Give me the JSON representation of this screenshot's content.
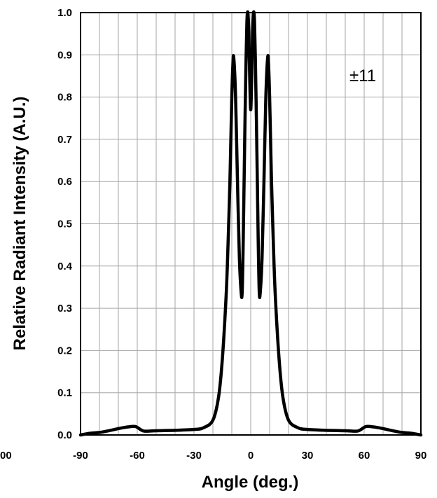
{
  "chart_data": {
    "type": "line",
    "title": "",
    "xlabel": "Angle (deg.)",
    "ylabel": "Relative Radiant Intensity (A.U.)",
    "annotation": "±11",
    "xlim": [
      -90,
      90
    ],
    "ylim": [
      0,
      1.0
    ],
    "grid": true,
    "x_ticks": [
      -90,
      -60,
      -30,
      0,
      30,
      60,
      90
    ],
    "x_tick_labels": [
      "-90",
      "-60",
      "-30",
      "0",
      "30",
      "60",
      "90"
    ],
    "y_ticks": [
      0,
      0.1,
      0.2,
      0.3,
      0.4,
      0.5,
      0.6,
      0.7,
      0.8,
      0.9,
      1.0
    ],
    "y_tick_labels": [
      "0.0",
      "0.1",
      "0.2",
      "0.3",
      "0.4",
      "0.5",
      "0.6",
      "0.7",
      "0.8",
      "0.9",
      "1.0"
    ],
    "clipped_left_label": "00",
    "series": [
      {
        "color": "#000000",
        "x": [
          -90,
          -85,
          -80,
          -75,
          -70,
          -65,
          -61,
          -58,
          -56,
          -50,
          -40,
          -30,
          -25,
          -20,
          -17,
          -15,
          -13,
          -12,
          -11,
          -10.5,
          -10,
          -9.5,
          -9,
          -8,
          -7,
          -6,
          -5,
          -4.5,
          -4,
          -3.5,
          -3,
          -2.5,
          -2,
          -1.5,
          -1,
          -0.5,
          0,
          0.5,
          1,
          1.5,
          2,
          2.5,
          3,
          3.5,
          4,
          4.5,
          5,
          6,
          7,
          8,
          9,
          9.5,
          10,
          10.5,
          11,
          12,
          13,
          15,
          17,
          20,
          25,
          30,
          40,
          50,
          56,
          58,
          61,
          65,
          70,
          75,
          80,
          85,
          90
        ],
        "y": [
          0.0,
          0.004,
          0.006,
          0.01,
          0.015,
          0.019,
          0.02,
          0.012,
          0.009,
          0.01,
          0.011,
          0.013,
          0.017,
          0.035,
          0.09,
          0.18,
          0.33,
          0.45,
          0.6,
          0.7,
          0.8,
          0.87,
          0.895,
          0.8,
          0.6,
          0.42,
          0.335,
          0.34,
          0.45,
          0.6,
          0.75,
          0.88,
          0.98,
          1.0,
          0.95,
          0.84,
          0.77,
          0.84,
          0.95,
          1.0,
          0.98,
          0.88,
          0.75,
          0.6,
          0.45,
          0.34,
          0.335,
          0.42,
          0.6,
          0.8,
          0.895,
          0.87,
          0.8,
          0.7,
          0.6,
          0.45,
          0.33,
          0.18,
          0.09,
          0.035,
          0.017,
          0.013,
          0.011,
          0.01,
          0.009,
          0.012,
          0.02,
          0.019,
          0.015,
          0.01,
          0.006,
          0.004,
          0.0
        ]
      }
    ]
  }
}
